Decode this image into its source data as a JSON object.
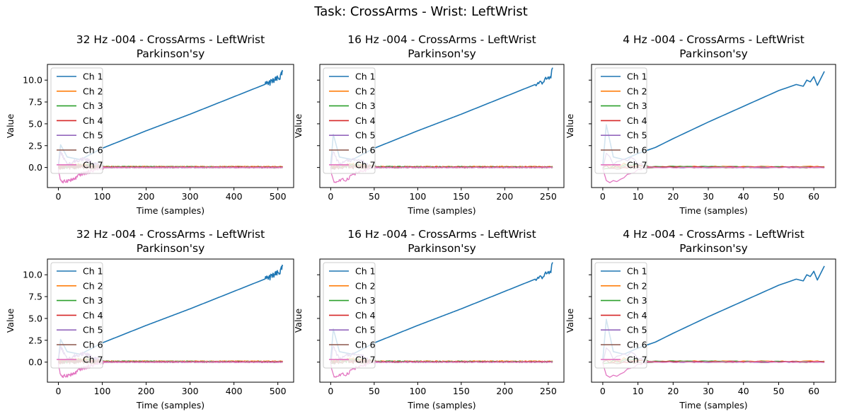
{
  "suptitle": "Task: CrossArms - Wrist: LeftWrist",
  "colors": [
    "#1f77b4",
    "#ff7f0e",
    "#2ca02c",
    "#d62728",
    "#9467bd",
    "#8c564b",
    "#e377c2"
  ],
  "chart_data": [
    {
      "type": "line",
      "title": "32 Hz -004 - CrossArms - LeftWrist",
      "subtitle": "Parkinson'sy",
      "xlabel": "Time (samples)",
      "ylabel": "Value",
      "xlim": [
        -25,
        536
      ],
      "ylim": [
        -2.3,
        11.8
      ],
      "xticks": [
        0,
        100,
        200,
        300,
        400,
        500
      ],
      "yticks": [
        0.0,
        2.5,
        5.0,
        7.5,
        10.0
      ],
      "ytick_labels": [
        "0.0",
        "2.5",
        "5.0",
        "7.5",
        "10.0"
      ],
      "n_samples": 512,
      "legend": "upper-left",
      "series": [
        {
          "name": "Ch 1",
          "x": [
            0,
            5,
            20,
            50,
            100,
            200,
            300,
            400,
            490,
            505,
            511
          ],
          "y": [
            0.2,
            2.6,
            1.2,
            0.9,
            2.2,
            4.2,
            6.1,
            8.1,
            9.9,
            10.3,
            10.9
          ]
        },
        {
          "name": "Ch 2",
          "x": [
            0,
            20,
            50,
            100,
            511
          ],
          "y": [
            0.1,
            0.2,
            0.3,
            0.1,
            0.1
          ]
        },
        {
          "name": "Ch 3",
          "x": [
            0,
            20,
            50,
            100,
            511
          ],
          "y": [
            0.0,
            0.1,
            0.2,
            0.1,
            0.05
          ]
        },
        {
          "name": "Ch 4",
          "x": [
            0,
            20,
            50,
            100,
            511
          ],
          "y": [
            0.05,
            0.15,
            0.1,
            0.05,
            0.05
          ]
        },
        {
          "name": "Ch 5",
          "x": [
            0,
            5,
            20,
            40,
            60,
            100,
            511
          ],
          "y": [
            0.0,
            1.8,
            0.3,
            0.8,
            1.0,
            0.0,
            0.0
          ]
        },
        {
          "name": "Ch 6",
          "x": [
            0,
            50,
            100,
            511
          ],
          "y": [
            0.0,
            0.05,
            0.0,
            0.0
          ]
        },
        {
          "name": "Ch 7",
          "x": [
            0,
            5,
            10,
            20,
            35,
            50,
            70,
            100,
            511
          ],
          "y": [
            -0.3,
            -1.4,
            -1.7,
            -1.5,
            -1.4,
            -0.8,
            -0.5,
            0.0,
            0.0
          ]
        }
      ]
    },
    {
      "type": "line",
      "title": "16 Hz -004 - CrossArms - LeftWrist",
      "subtitle": "Parkinson'sy",
      "xlabel": "Time (samples)",
      "ylabel": "Value",
      "xlim": [
        -12.5,
        268
      ],
      "ylim": [
        -2.3,
        11.8
      ],
      "xticks": [
        0,
        50,
        100,
        150,
        200,
        250
      ],
      "yticks": [
        0.0,
        2.5,
        5.0,
        7.5,
        10.0
      ],
      "ytick_labels": [
        "",
        "",
        "",
        "",
        ""
      ],
      "n_samples": 256,
      "legend": "upper-left",
      "series": [
        {
          "name": "Ch 1",
          "x": [
            0,
            3,
            10,
            25,
            50,
            100,
            150,
            200,
            245,
            252,
            255
          ],
          "y": [
            0.2,
            3.8,
            1.2,
            0.9,
            2.2,
            4.2,
            6.1,
            8.1,
            9.9,
            10.3,
            11.1
          ]
        },
        {
          "name": "Ch 2",
          "x": [
            0,
            10,
            25,
            50,
            255
          ],
          "y": [
            0.1,
            0.2,
            0.3,
            0.1,
            0.1
          ]
        },
        {
          "name": "Ch 3",
          "x": [
            0,
            10,
            25,
            50,
            255
          ],
          "y": [
            0.0,
            0.1,
            0.2,
            0.1,
            0.05
          ]
        },
        {
          "name": "Ch 4",
          "x": [
            0,
            10,
            25,
            50,
            255
          ],
          "y": [
            0.05,
            0.15,
            0.1,
            0.05,
            0.05
          ]
        },
        {
          "name": "Ch 5",
          "x": [
            0,
            3,
            10,
            20,
            30,
            50,
            255
          ],
          "y": [
            0.0,
            1.8,
            0.3,
            0.8,
            1.0,
            0.0,
            0.0
          ]
        },
        {
          "name": "Ch 6",
          "x": [
            0,
            25,
            50,
            255
          ],
          "y": [
            0.0,
            0.05,
            0.0,
            0.0
          ]
        },
        {
          "name": "Ch 7",
          "x": [
            0,
            3,
            5,
            10,
            18,
            25,
            35,
            50,
            255
          ],
          "y": [
            -0.3,
            -1.4,
            -1.7,
            -1.5,
            -1.4,
            -0.8,
            -0.5,
            0.0,
            0.0
          ]
        }
      ]
    },
    {
      "type": "line",
      "title": "4 Hz -004 - CrossArms - LeftWrist",
      "subtitle": "Parkinson'sy",
      "xlabel": "Time (samples)",
      "ylabel": "Value",
      "xlim": [
        -3.2,
        66.2
      ],
      "ylim": [
        -2.3,
        11.8
      ],
      "xticks": [
        0,
        10,
        20,
        30,
        40,
        50,
        60
      ],
      "yticks": [
        0.0,
        2.5,
        5.0,
        7.5,
        10.0
      ],
      "ytick_labels": [
        "",
        "",
        "",
        "",
        ""
      ],
      "n_samples": 64,
      "legend": "upper-left",
      "series": [
        {
          "name": "Ch 1",
          "x": [
            0,
            1,
            3,
            6,
            10,
            15,
            20,
            30,
            40,
            50,
            55,
            57,
            58,
            59,
            60,
            61,
            62,
            63
          ],
          "y": [
            0.2,
            4.9,
            1.2,
            0.9,
            1.6,
            2.3,
            3.3,
            5.2,
            7.0,
            8.8,
            9.5,
            9.3,
            10.0,
            9.8,
            10.4,
            9.4,
            10.2,
            11.0
          ]
        },
        {
          "name": "Ch 2",
          "x": [
            0,
            3,
            6,
            12,
            63
          ],
          "y": [
            0.1,
            0.2,
            0.3,
            0.1,
            0.1
          ]
        },
        {
          "name": "Ch 3",
          "x": [
            0,
            3,
            6,
            12,
            63
          ],
          "y": [
            0.0,
            0.1,
            0.2,
            0.1,
            0.05
          ]
        },
        {
          "name": "Ch 4",
          "x": [
            0,
            3,
            6,
            12,
            63
          ],
          "y": [
            0.05,
            0.15,
            0.1,
            0.05,
            0.05
          ]
        },
        {
          "name": "Ch 5",
          "x": [
            0,
            1,
            3,
            5,
            8,
            12,
            63
          ],
          "y": [
            0.0,
            1.8,
            0.3,
            0.8,
            1.0,
            0.0,
            0.0
          ]
        },
        {
          "name": "Ch 6",
          "x": [
            0,
            6,
            12,
            63
          ],
          "y": [
            0.0,
            0.05,
            0.0,
            0.0
          ]
        },
        {
          "name": "Ch 7",
          "x": [
            0,
            1,
            2,
            3,
            5,
            7,
            9,
            12,
            63
          ],
          "y": [
            -0.3,
            -1.4,
            -1.7,
            -1.5,
            -1.4,
            -0.8,
            -0.5,
            0.0,
            0.0
          ]
        }
      ]
    },
    {
      "type": "line",
      "title": "32 Hz -004 - CrossArms - LeftWrist",
      "subtitle": "Parkinson'sy",
      "xlabel": "Time (samples)",
      "ylabel": "Value",
      "xlim": [
        -25,
        536
      ],
      "ylim": [
        -2.3,
        11.8
      ],
      "xticks": [
        0,
        100,
        200,
        300,
        400,
        500
      ],
      "yticks": [
        0.0,
        2.5,
        5.0,
        7.5,
        10.0
      ],
      "ytick_labels": [
        "0.0",
        "2.5",
        "5.0",
        "7.5",
        "10.0"
      ],
      "n_samples": 512,
      "legend": "upper-left",
      "series": [
        {
          "name": "Ch 1",
          "x": [
            0,
            5,
            20,
            50,
            100,
            200,
            300,
            400,
            490,
            505,
            511
          ],
          "y": [
            0.2,
            2.6,
            1.2,
            0.9,
            2.2,
            4.2,
            6.1,
            8.1,
            9.9,
            10.3,
            10.9
          ]
        },
        {
          "name": "Ch 2",
          "x": [
            0,
            20,
            50,
            100,
            511
          ],
          "y": [
            0.1,
            0.2,
            0.3,
            0.1,
            0.1
          ]
        },
        {
          "name": "Ch 3",
          "x": [
            0,
            20,
            50,
            100,
            511
          ],
          "y": [
            0.0,
            0.1,
            0.2,
            0.1,
            0.05
          ]
        },
        {
          "name": "Ch 4",
          "x": [
            0,
            20,
            50,
            100,
            511
          ],
          "y": [
            0.05,
            0.15,
            0.1,
            0.05,
            0.05
          ]
        },
        {
          "name": "Ch 5",
          "x": [
            0,
            5,
            20,
            40,
            60,
            100,
            511
          ],
          "y": [
            0.0,
            1.8,
            0.3,
            0.8,
            1.0,
            0.0,
            0.0
          ]
        },
        {
          "name": "Ch 6",
          "x": [
            0,
            50,
            100,
            511
          ],
          "y": [
            0.0,
            0.05,
            0.0,
            0.0
          ]
        },
        {
          "name": "Ch 7",
          "x": [
            0,
            5,
            10,
            20,
            35,
            50,
            70,
            100,
            511
          ],
          "y": [
            -0.3,
            -1.4,
            -1.7,
            -1.5,
            -1.4,
            -0.8,
            -0.5,
            0.0,
            0.0
          ]
        }
      ]
    },
    {
      "type": "line",
      "title": "16 Hz -004 - CrossArms - LeftWrist",
      "subtitle": "Parkinson'sy",
      "xlabel": "Time (samples)",
      "ylabel": "Value",
      "xlim": [
        -12.5,
        268
      ],
      "ylim": [
        -2.3,
        11.8
      ],
      "xticks": [
        0,
        50,
        100,
        150,
        200,
        250
      ],
      "yticks": [
        0.0,
        2.5,
        5.0,
        7.5,
        10.0
      ],
      "ytick_labels": [
        "",
        "",
        "",
        "",
        ""
      ],
      "n_samples": 256,
      "legend": "upper-left",
      "series": [
        {
          "name": "Ch 1",
          "x": [
            0,
            3,
            10,
            25,
            50,
            100,
            150,
            200,
            245,
            252,
            255
          ],
          "y": [
            0.2,
            3.8,
            1.2,
            0.9,
            2.2,
            4.2,
            6.1,
            8.1,
            9.9,
            10.3,
            11.1
          ]
        },
        {
          "name": "Ch 2",
          "x": [
            0,
            10,
            25,
            50,
            255
          ],
          "y": [
            0.1,
            0.2,
            0.3,
            0.1,
            0.1
          ]
        },
        {
          "name": "Ch 3",
          "x": [
            0,
            10,
            25,
            50,
            255
          ],
          "y": [
            0.0,
            0.1,
            0.2,
            0.1,
            0.05
          ]
        },
        {
          "name": "Ch 4",
          "x": [
            0,
            10,
            25,
            50,
            255
          ],
          "y": [
            0.05,
            0.15,
            0.1,
            0.05,
            0.05
          ]
        },
        {
          "name": "Ch 5",
          "x": [
            0,
            3,
            10,
            20,
            30,
            50,
            255
          ],
          "y": [
            0.0,
            1.8,
            0.3,
            0.8,
            1.0,
            0.0,
            0.0
          ]
        },
        {
          "name": "Ch 6",
          "x": [
            0,
            25,
            50,
            255
          ],
          "y": [
            0.0,
            0.05,
            0.0,
            0.0
          ]
        },
        {
          "name": "Ch 7",
          "x": [
            0,
            3,
            5,
            10,
            18,
            25,
            35,
            50,
            255
          ],
          "y": [
            -0.3,
            -1.4,
            -1.7,
            -1.5,
            -1.4,
            -0.8,
            -0.5,
            0.0,
            0.0
          ]
        }
      ]
    },
    {
      "type": "line",
      "title": "4 Hz -004 - CrossArms - LeftWrist",
      "subtitle": "Parkinson'sy",
      "xlabel": "Time (samples)",
      "ylabel": "Value",
      "xlim": [
        -3.2,
        66.2
      ],
      "ylim": [
        -2.3,
        11.8
      ],
      "xticks": [
        0,
        10,
        20,
        30,
        40,
        50,
        60
      ],
      "yticks": [
        0.0,
        2.5,
        5.0,
        7.5,
        10.0
      ],
      "ytick_labels": [
        "",
        "",
        "",
        "",
        ""
      ],
      "n_samples": 64,
      "legend": "upper-left",
      "series": [
        {
          "name": "Ch 1",
          "x": [
            0,
            1,
            3,
            6,
            10,
            15,
            20,
            30,
            40,
            50,
            55,
            57,
            58,
            59,
            60,
            61,
            62,
            63
          ],
          "y": [
            0.2,
            4.9,
            1.2,
            0.9,
            1.6,
            2.3,
            3.3,
            5.2,
            7.0,
            8.8,
            9.5,
            9.3,
            10.0,
            9.8,
            10.4,
            9.4,
            10.2,
            11.0
          ]
        },
        {
          "name": "Ch 2",
          "x": [
            0,
            3,
            6,
            12,
            63
          ],
          "y": [
            0.1,
            0.2,
            0.3,
            0.1,
            0.1
          ]
        },
        {
          "name": "Ch 3",
          "x": [
            0,
            3,
            6,
            12,
            63
          ],
          "y": [
            0.0,
            0.1,
            0.2,
            0.1,
            0.05
          ]
        },
        {
          "name": "Ch 4",
          "x": [
            0,
            3,
            6,
            12,
            63
          ],
          "y": [
            0.05,
            0.15,
            0.1,
            0.05,
            0.05
          ]
        },
        {
          "name": "Ch 5",
          "x": [
            0,
            1,
            3,
            5,
            8,
            12,
            63
          ],
          "y": [
            0.0,
            1.8,
            0.3,
            0.8,
            1.0,
            0.0,
            0.0
          ]
        },
        {
          "name": "Ch 6",
          "x": [
            0,
            6,
            12,
            63
          ],
          "y": [
            0.0,
            0.05,
            0.0,
            0.0
          ]
        },
        {
          "name": "Ch 7",
          "x": [
            0,
            1,
            2,
            3,
            5,
            7,
            9,
            12,
            63
          ],
          "y": [
            -0.3,
            -1.4,
            -1.7,
            -1.5,
            -1.4,
            -0.8,
            -0.5,
            0.0,
            0.0
          ]
        }
      ]
    }
  ]
}
